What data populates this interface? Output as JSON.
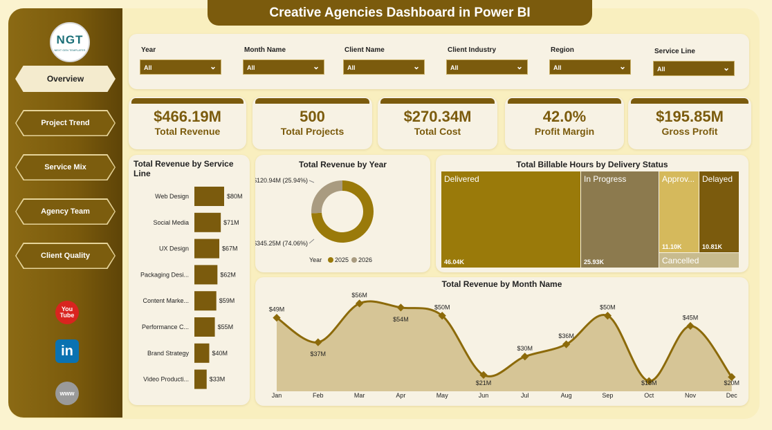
{
  "title": "Creative Agencies Dashboard in Power BI",
  "logo": {
    "text": "NGT",
    "tagline": "NEXT GEN TEMPLATES"
  },
  "nav": [
    {
      "label": "Overview",
      "active": true
    },
    {
      "label": "Project Trend",
      "active": false
    },
    {
      "label": "Service Mix",
      "active": false
    },
    {
      "label": "Agency Team",
      "active": false
    },
    {
      "label": "Client Quality",
      "active": false
    }
  ],
  "social": {
    "youtube_icon": "youtube-icon",
    "linkedin_icon": "linkedin-icon",
    "web_icon": "globe-icon",
    "youtube_text": [
      "You",
      "Tube"
    ],
    "linkedin_text": "in",
    "web_text": "www"
  },
  "filters": [
    {
      "label": "Year",
      "value": "All"
    },
    {
      "label": "Month Name",
      "value": "All"
    },
    {
      "label": "Client Name",
      "value": "All"
    },
    {
      "label": "Client Industry",
      "value": "All"
    },
    {
      "label": "Region",
      "value": "All"
    },
    {
      "label": "Service Line",
      "value": "All"
    }
  ],
  "kpis": [
    {
      "value": "$466.19M",
      "label": "Total Revenue"
    },
    {
      "value": "500",
      "label": "Total Projects"
    },
    {
      "value": "$270.34M",
      "label": "Total Cost"
    },
    {
      "value": "42.0%",
      "label": "Profit Margin"
    },
    {
      "value": "$195.85M",
      "label": "Gross Profit"
    }
  ],
  "colors": {
    "primary": "#7b5b0d",
    "accent_dark": "#9a7a0a",
    "accent_mid": "#8c7a4e",
    "accent_light": "#d5b95c",
    "accent_pale": "#c8bb8e"
  },
  "chart_data": [
    {
      "type": "bar",
      "title": "Total Revenue by Service Line",
      "orientation": "horizontal",
      "categories": [
        "Web Design",
        "Social Media",
        "UX Design",
        "Packaging Desi...",
        "Content Marke...",
        "Performance C...",
        "Brand Strategy",
        "Video Producti..."
      ],
      "values": [
        80,
        71,
        67,
        62,
        59,
        55,
        40,
        33
      ],
      "labels": [
        "$80M",
        "$71M",
        "$67M",
        "$62M",
        "$59M",
        "$55M",
        "$40M",
        "$33M"
      ]
    },
    {
      "type": "pie",
      "title": "Total Revenue by Year",
      "legend_title": "Year",
      "categories": [
        "2025",
        "2026"
      ],
      "values": [
        345.25,
        120.94
      ],
      "labels": [
        "$345.25M (74.06%)",
        "$120.94M (25.94%)"
      ],
      "colors": [
        "#9a7a0a",
        "#a99b80"
      ]
    },
    {
      "type": "heatmap",
      "subtype": "treemap",
      "title": "Total Billable Hours by Delivery Status",
      "categories": [
        "Delivered",
        "In Progress",
        "Approv...",
        "Delayed",
        "Cancelled"
      ],
      "values": [
        46040,
        25930,
        11100,
        10810,
        null
      ],
      "labels": [
        "46.04K",
        "25.93K",
        "11.10K",
        "10.81K",
        ""
      ]
    },
    {
      "type": "area",
      "title": "Total Revenue by Month Name",
      "categories": [
        "Jan",
        "Feb",
        "Mar",
        "Apr",
        "May",
        "Jun",
        "Jul",
        "Aug",
        "Sep",
        "Oct",
        "Nov",
        "Dec"
      ],
      "values": [
        49,
        37,
        56,
        54,
        50,
        21,
        30,
        36,
        50,
        18,
        45,
        20
      ],
      "labels": [
        "$49M",
        "$37M",
        "$56M",
        "$54M",
        "$50M",
        "$21M",
        "$30M",
        "$36M",
        "$50M",
        "$18M",
        "$45M",
        "$20M"
      ]
    }
  ]
}
